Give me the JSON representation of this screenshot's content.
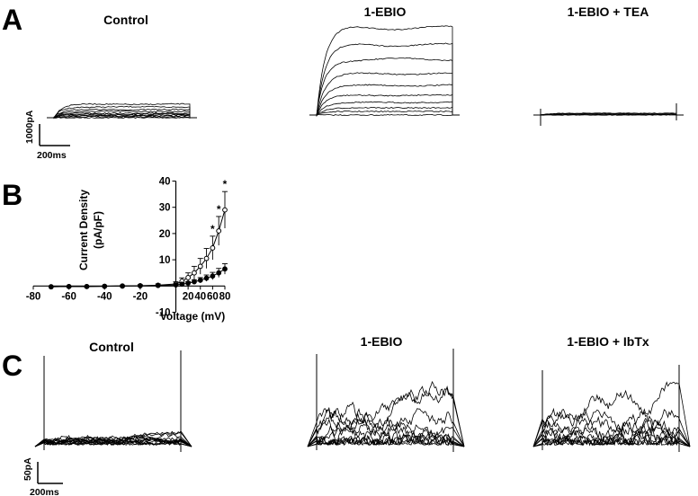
{
  "panels": {
    "a": {
      "letter": "A",
      "titles": [
        "Control",
        "1-EBIO",
        "1-EBIO + TEA"
      ],
      "scale": {
        "y_label": "1000pA",
        "x_label": "200ms"
      }
    },
    "b": {
      "letter": "B"
    },
    "c": {
      "letter": "C",
      "titles": [
        "Control",
        "1-EBIO",
        "1-EBIO + IbTx"
      ],
      "scale": {
        "y_label": "50pA",
        "x_label": "200ms"
      }
    }
  },
  "chart_data": {
    "type": "line",
    "ylabel_lines": [
      "Current Density",
      "(pA/pF)"
    ],
    "xlabel": "Voltage (mV)",
    "xlim": [
      -80,
      80
    ],
    "ylim": [
      -10,
      40
    ],
    "xticks": [
      -80,
      -60,
      -40,
      -20,
      20,
      40,
      60,
      80
    ],
    "yticks": [
      -10,
      10,
      20,
      30,
      40
    ],
    "x": [
      -70,
      -60,
      -50,
      -40,
      -30,
      -20,
      -10,
      0,
      10,
      20,
      30,
      40,
      50,
      60,
      70,
      80
    ],
    "series": [
      {
        "marker": "open-circle",
        "values": [
          -0.3,
          -0.2,
          -0.2,
          -0.1,
          0,
          0.1,
          0.3,
          0.8,
          1.8,
          3.2,
          5,
          7.5,
          10.5,
          14.5,
          21,
          29
        ],
        "errors": [
          0.3,
          0.3,
          0.3,
          0.3,
          0.3,
          0.4,
          0.5,
          0.8,
          1.3,
          1.8,
          2.5,
          3,
          3.8,
          4.5,
          5.5,
          7
        ]
      },
      {
        "marker": "filled-circle",
        "values": [
          -0.3,
          -0.2,
          -0.2,
          -0.1,
          0,
          0.1,
          0.2,
          0.4,
          0.7,
          1.1,
          1.6,
          2.2,
          3,
          3.8,
          5,
          6.5
        ],
        "errors": [
          0.2,
          0.2,
          0.2,
          0.2,
          0.2,
          0.2,
          0.3,
          0.4,
          0.5,
          0.6,
          0.8,
          1,
          1.2,
          1.4,
          1.7,
          2
        ]
      }
    ],
    "significance": [
      {
        "x": 60,
        "label": "*"
      },
      {
        "x": 70,
        "label": "*"
      },
      {
        "x": 80,
        "label": "*"
      }
    ]
  }
}
